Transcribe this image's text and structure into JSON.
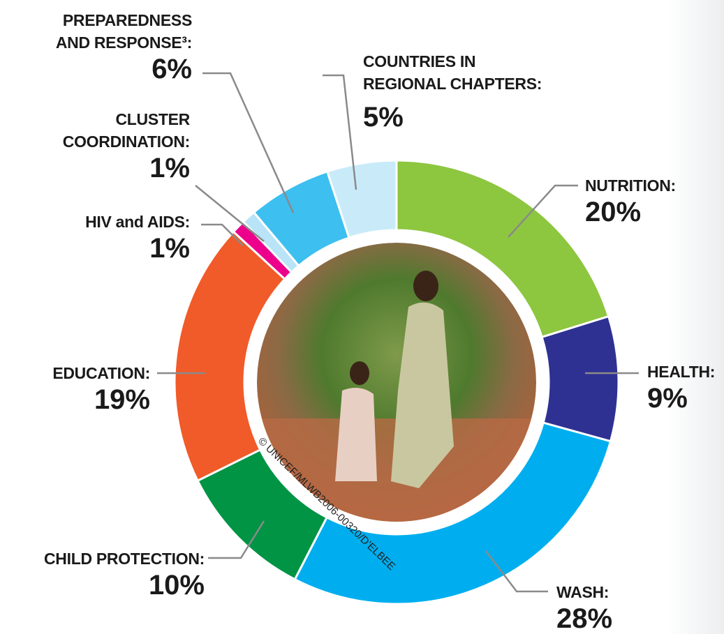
{
  "chart_data": {
    "type": "pie",
    "donut": true,
    "categories": [
      "NUTRITION:",
      "HEALTH:",
      "WASH:",
      "CHILD PROTECTION:",
      "EDUCATION:",
      "HIV and AIDS:",
      "CLUSTER\nCOORDINATION:",
      "PREPAREDNESS\nAND RESPONSE³:",
      "COUNTRIES IN\nREGIONAL CHAPTERS:"
    ],
    "values": [
      20,
      9,
      28,
      10,
      19,
      1,
      1,
      6,
      5
    ],
    "value_labels": [
      "20%",
      "9%",
      "28%",
      "10%",
      "19%",
      "1%",
      "1%",
      "6%",
      "5%"
    ],
    "colors": [
      "#8dc63f",
      "#2e3192",
      "#00aeef",
      "#009444",
      "#f15a29",
      "#ec008c",
      "#b9e3f6",
      "#3dbff0",
      "#c9ebf9"
    ],
    "credit": "© UNICEF/MLWB2006-00320/D’ELBEE"
  }
}
